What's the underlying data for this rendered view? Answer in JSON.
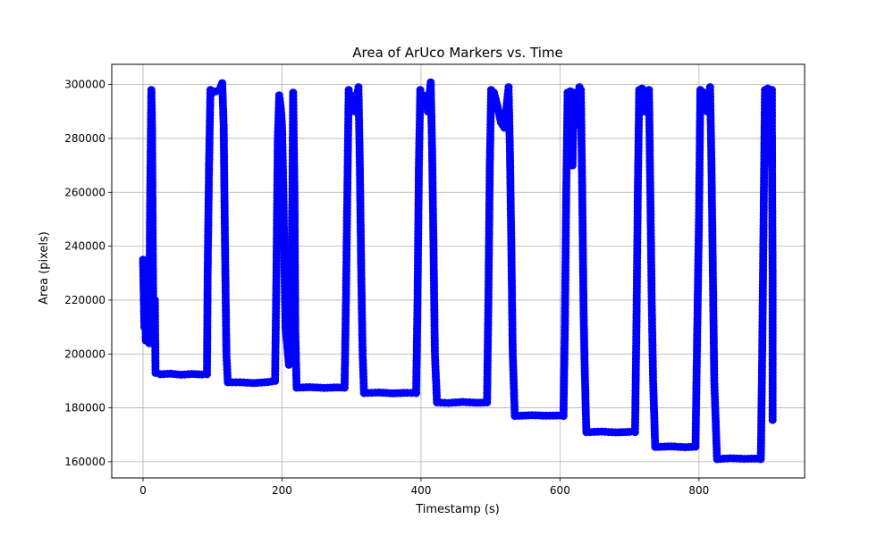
{
  "chart_data": {
    "type": "line",
    "title": "Area of ArUco Markers vs. Time",
    "xlabel": "Timestamp (s)",
    "ylabel": "Area (pixels)",
    "xlim": [
      -45,
      952
    ],
    "ylim": [
      154000,
      307500
    ],
    "xticks": [
      0,
      200,
      400,
      600,
      800
    ],
    "yticks": [
      160000,
      180000,
      200000,
      220000,
      240000,
      260000,
      280000,
      300000
    ],
    "xtick_labels": [
      "0",
      "200",
      "400",
      "600",
      "800"
    ],
    "ytick_labels": [
      "160000",
      "180000",
      "200000",
      "220000",
      "240000",
      "260000",
      "280000",
      "300000"
    ],
    "grid": true,
    "marker": "circle",
    "color": "#0000ff",
    "series": [
      {
        "points": [
          [
            0,
            235000
          ],
          [
            1,
            222000
          ],
          [
            2,
            210000
          ],
          [
            3,
            228000
          ],
          [
            4,
            205000
          ],
          [
            5,
            232000
          ],
          [
            6,
            215000
          ],
          [
            7,
            208000
          ],
          [
            8,
            226000
          ],
          [
            9,
            204000
          ],
          [
            10,
            250000
          ],
          [
            11,
            275000
          ],
          [
            12,
            298000
          ],
          [
            13,
            285000
          ],
          [
            14,
            240000
          ],
          [
            15,
            210000
          ],
          [
            16,
            205000
          ],
          [
            17,
            220000
          ],
          [
            18,
            193000
          ],
          [
            25,
            192500
          ],
          [
            40,
            192700
          ],
          [
            55,
            192300
          ],
          [
            70,
            192600
          ],
          [
            85,
            192400
          ],
          [
            92,
            192500
          ],
          [
            93,
            230000
          ],
          [
            95,
            270000
          ],
          [
            97,
            298000
          ],
          [
            100,
            297000
          ],
          [
            105,
            297500
          ],
          [
            110,
            298000
          ],
          [
            114,
            300500
          ],
          [
            116,
            285000
          ],
          [
            118,
            240000
          ],
          [
            120,
            200000
          ],
          [
            122,
            189500
          ],
          [
            140,
            189500
          ],
          [
            160,
            189200
          ],
          [
            180,
            189600
          ],
          [
            190,
            190000
          ],
          [
            192,
            230000
          ],
          [
            194,
            280000
          ],
          [
            196,
            296000
          ],
          [
            198,
            292000
          ],
          [
            200,
            285000
          ],
          [
            202,
            260000
          ],
          [
            205,
            210000
          ],
          [
            210,
            196000
          ],
          [
            213,
            220000
          ],
          [
            215,
            260000
          ],
          [
            216,
            297000
          ],
          [
            218,
            260000
          ],
          [
            219,
            210000
          ],
          [
            221,
            187500
          ],
          [
            240,
            187700
          ],
          [
            260,
            187400
          ],
          [
            280,
            187600
          ],
          [
            290,
            187500
          ],
          [
            292,
            220000
          ],
          [
            294,
            260000
          ],
          [
            296,
            298000
          ],
          [
            300,
            296000
          ],
          [
            305,
            290000
          ],
          [
            310,
            299000
          ],
          [
            312,
            270000
          ],
          [
            314,
            230000
          ],
          [
            316,
            200000
          ],
          [
            318,
            185500
          ],
          [
            340,
            185700
          ],
          [
            360,
            185400
          ],
          [
            380,
            185600
          ],
          [
            393,
            185500
          ],
          [
            395,
            220000
          ],
          [
            397,
            270000
          ],
          [
            399,
            298000
          ],
          [
            403,
            296000
          ],
          [
            410,
            290000
          ],
          [
            414,
            300800
          ],
          [
            416,
            275000
          ],
          [
            418,
            240000
          ],
          [
            420,
            200000
          ],
          [
            423,
            182000
          ],
          [
            440,
            181800
          ],
          [
            460,
            182200
          ],
          [
            480,
            181900
          ],
          [
            495,
            182000
          ],
          [
            497,
            220000
          ],
          [
            499,
            270000
          ],
          [
            501,
            298000
          ],
          [
            505,
            297000
          ],
          [
            510,
            292000
          ],
          [
            515,
            286000
          ],
          [
            520,
            284000
          ],
          [
            526,
            299000
          ],
          [
            528,
            275000
          ],
          [
            530,
            240000
          ],
          [
            532,
            200000
          ],
          [
            535,
            177000
          ],
          [
            560,
            177300
          ],
          [
            580,
            177100
          ],
          [
            600,
            177200
          ],
          [
            605,
            177000
          ],
          [
            607,
            210000
          ],
          [
            609,
            260000
          ],
          [
            611,
            297000
          ],
          [
            613,
            270000
          ],
          [
            615,
            297500
          ],
          [
            618,
            270000
          ],
          [
            620,
            297000
          ],
          [
            623,
            285000
          ],
          [
            628,
            299000
          ],
          [
            630,
            298000
          ],
          [
            632,
            260000
          ],
          [
            634,
            215000
          ],
          [
            636,
            190000
          ],
          [
            638,
            171000
          ],
          [
            660,
            171200
          ],
          [
            680,
            170900
          ],
          [
            700,
            171100
          ],
          [
            708,
            171000
          ],
          [
            710,
            210000
          ],
          [
            712,
            260000
          ],
          [
            714,
            298000
          ],
          [
            718,
            298500
          ],
          [
            722,
            290000
          ],
          [
            725,
            296000
          ],
          [
            728,
            298000
          ],
          [
            730,
            260000
          ],
          [
            732,
            220000
          ],
          [
            734,
            190000
          ],
          [
            737,
            165500
          ],
          [
            760,
            165700
          ],
          [
            780,
            165400
          ],
          [
            795,
            165600
          ],
          [
            797,
            200000
          ],
          [
            800,
            250000
          ],
          [
            802,
            298000
          ],
          [
            808,
            297000
          ],
          [
            812,
            290000
          ],
          [
            816,
            299000
          ],
          [
            818,
            270000
          ],
          [
            820,
            230000
          ],
          [
            822,
            190000
          ],
          [
            826,
            161000
          ],
          [
            845,
            161300
          ],
          [
            865,
            161100
          ],
          [
            885,
            161200
          ],
          [
            889,
            161000
          ],
          [
            891,
            200000
          ],
          [
            893,
            250000
          ],
          [
            895,
            298000
          ],
          [
            899,
            298500
          ],
          [
            903,
            298000
          ],
          [
            905,
            298000
          ],
          [
            905,
            287000
          ],
          [
            905,
            270000
          ],
          [
            905,
            281000
          ],
          [
            906,
            225000
          ],
          [
            906,
            175500
          ]
        ]
      }
    ]
  }
}
